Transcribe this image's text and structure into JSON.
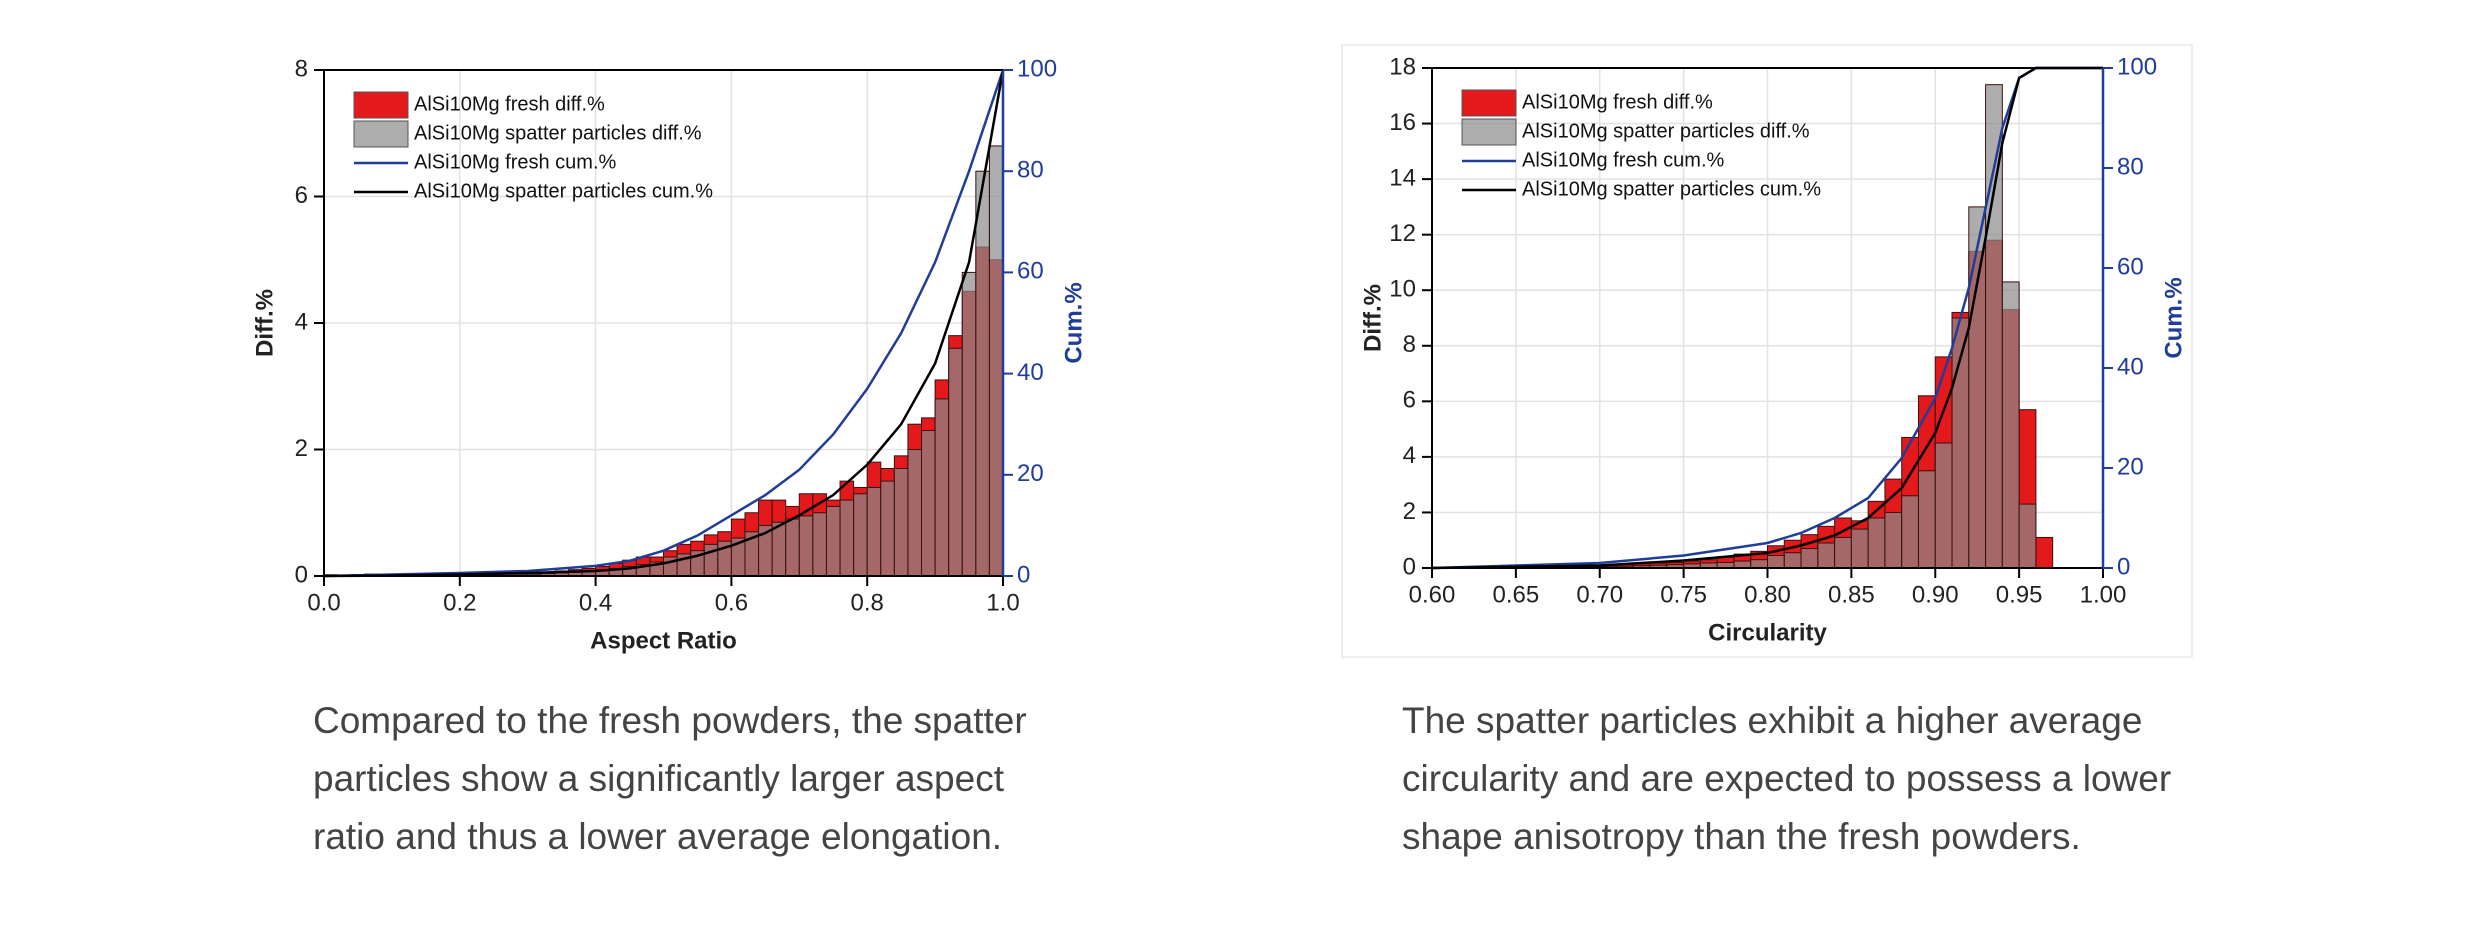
{
  "chart_data": [
    {
      "type": "histogram",
      "xlabel": "Aspect Ratio",
      "ylabel": "Diff.%",
      "y2label": "Cum.%",
      "xlim": [
        0,
        1
      ],
      "ylim": [
        0,
        8
      ],
      "y2lim": [
        0,
        100
      ],
      "grid": true,
      "legend": "upper left",
      "xticks": [
        {
          "value": 0,
          "label": "0.0"
        },
        0.2,
        0.4,
        0.6,
        0.8,
        {
          "value": 1,
          "label": "1.0"
        }
      ],
      "yticks": [
        0,
        2,
        4,
        6,
        8
      ],
      "y2ticks": [
        0,
        20,
        40,
        60,
        80,
        100
      ],
      "bins": [
        0,
        0.02,
        0.04,
        0.06,
        0.08,
        0.1,
        0.12,
        0.14,
        0.16,
        0.18,
        0.2,
        0.22,
        0.24,
        0.26,
        0.28,
        0.3,
        0.32,
        0.34,
        0.36,
        0.38,
        0.4,
        0.42,
        0.44,
        0.46,
        0.48,
        0.5,
        0.52,
        0.54,
        0.56,
        0.58,
        0.6,
        0.62,
        0.64,
        0.66,
        0.68,
        0.7,
        0.72,
        0.74,
        0.76,
        0.78,
        0.8,
        0.82,
        0.84,
        0.86,
        0.88,
        0.9,
        0.92,
        0.94,
        0.96,
        0.98,
        1
      ],
      "series": [
        {
          "name": "AlSi10Mg fresh diff.%",
          "color": "#e3191c",
          "values": [
            0.02,
            0,
            0.02,
            0.03,
            0,
            0.02,
            0.02,
            0,
            0.02,
            0.02,
            0.03,
            0.02,
            0.03,
            0.04,
            0.04,
            0.05,
            0.06,
            0.08,
            0.1,
            0.12,
            0.15,
            0.2,
            0.25,
            0.3,
            0.3,
            0.4,
            0.5,
            0.55,
            0.65,
            0.7,
            0.9,
            1.0,
            1.2,
            1.2,
            1.1,
            1.3,
            1.3,
            1.2,
            1.5,
            1.4,
            1.8,
            1.7,
            1.9,
            2.4,
            2.5,
            3.1,
            3.8,
            4.5,
            5.2,
            5.0
          ]
        },
        {
          "name": "AlSi10Mg spatter particles diff.%",
          "color": "#8a8a8a",
          "values": [
            0,
            0,
            0,
            0.01,
            0,
            0,
            0.01,
            0,
            0.01,
            0.02,
            0.02,
            0.02,
            0.02,
            0.03,
            0.03,
            0.03,
            0.04,
            0.05,
            0.06,
            0.08,
            0.1,
            0.12,
            0.15,
            0.18,
            0.22,
            0.3,
            0.35,
            0.4,
            0.5,
            0.55,
            0.6,
            0.7,
            0.8,
            0.85,
            0.9,
            0.95,
            1.0,
            1.1,
            1.2,
            1.3,
            1.4,
            1.5,
            1.7,
            2.0,
            2.3,
            2.8,
            3.6,
            4.8,
            6.4,
            6.8
          ]
        },
        {
          "name": "AlSi10Mg fresh cum.%",
          "color": "#1f3d99",
          "axis": "y2",
          "x": [
            0,
            0.1,
            0.2,
            0.3,
            0.4,
            0.45,
            0.5,
            0.55,
            0.6,
            0.65,
            0.7,
            0.75,
            0.8,
            0.85,
            0.9,
            0.95,
            1
          ],
          "values": [
            0,
            0.3,
            0.6,
            1,
            2,
            3,
            5,
            8,
            12,
            16,
            21,
            28,
            37,
            48,
            62,
            80,
            100
          ]
        },
        {
          "name": "AlSi10Mg spatter particles cum.%",
          "color": "#000000",
          "axis": "y2",
          "x": [
            0,
            0.1,
            0.2,
            0.3,
            0.4,
            0.45,
            0.5,
            0.55,
            0.6,
            0.65,
            0.7,
            0.75,
            0.8,
            0.85,
            0.9,
            0.95,
            1
          ],
          "values": [
            0,
            0.1,
            0.3,
            0.6,
            1,
            1.5,
            2.5,
            4,
            6,
            8.5,
            12,
            16,
            22,
            30,
            42,
            62,
            100
          ]
        }
      ]
    },
    {
      "type": "histogram",
      "xlabel": "Circularity",
      "ylabel": "Diff.%",
      "y2label": "Cum.%",
      "xlim": [
        0.6,
        1
      ],
      "ylim": [
        0,
        18
      ],
      "y2lim": [
        0,
        100
      ],
      "grid": true,
      "legend": "upper left",
      "xticks": [
        {
          "value": 0.6,
          "label": "0.60"
        },
        {
          "value": 0.65,
          "label": "0.65"
        },
        {
          "value": 0.7,
          "label": "0.70"
        },
        {
          "value": 0.75,
          "label": "0.75"
        },
        {
          "value": 0.8,
          "label": "0.80"
        },
        {
          "value": 0.85,
          "label": "0.85"
        },
        {
          "value": 0.9,
          "label": "0.90"
        },
        {
          "value": 0.95,
          "label": "0.95"
        },
        {
          "value": 1,
          "label": "1.00"
        }
      ],
      "yticks": [
        0,
        2,
        4,
        6,
        8,
        10,
        12,
        14,
        16,
        18
      ],
      "y2ticks": [
        0,
        20,
        40,
        60,
        80,
        100
      ],
      "bins": [
        0.6,
        0.61,
        0.62,
        0.63,
        0.64,
        0.65,
        0.66,
        0.67,
        0.68,
        0.69,
        0.7,
        0.71,
        0.72,
        0.73,
        0.74,
        0.75,
        0.76,
        0.77,
        0.78,
        0.79,
        0.8,
        0.81,
        0.82,
        0.83,
        0.84,
        0.85,
        0.86,
        0.87,
        0.88,
        0.89,
        0.9,
        0.91,
        0.92,
        0.93,
        0.94,
        0.95,
        0.96,
        0.97
      ],
      "series": [
        {
          "name": "AlSi10Mg fresh diff.%",
          "color": "#e3191c",
          "values": [
            0,
            0,
            0,
            0,
            0,
            0,
            0,
            0.02,
            0.05,
            0.08,
            0.1,
            0.12,
            0.15,
            0.18,
            0.2,
            0.25,
            0.3,
            0.4,
            0.5,
            0.6,
            0.8,
            1.0,
            1.2,
            1.5,
            1.8,
            1.7,
            2.4,
            3.2,
            4.7,
            6.2,
            7.6,
            9.2,
            11.4,
            11.8,
            9.3,
            5.7,
            1.1
          ]
        },
        {
          "name": "AlSi10Mg spatter particles diff.%",
          "color": "#8a8a8a",
          "values": [
            0,
            0,
            0,
            0,
            0,
            0,
            0,
            0.01,
            0.02,
            0.03,
            0.05,
            0.06,
            0.08,
            0.1,
            0.12,
            0.15,
            0.18,
            0.2,
            0.25,
            0.3,
            0.45,
            0.55,
            0.7,
            0.9,
            1.1,
            1.4,
            1.8,
            2.0,
            2.6,
            3.5,
            4.5,
            9.0,
            13.0,
            17.4,
            10.3,
            2.3,
            0
          ]
        },
        {
          "name": "AlSi10Mg fresh cum.%",
          "color": "#1f3d99",
          "axis": "y2",
          "x": [
            0.6,
            0.7,
            0.75,
            0.8,
            0.82,
            0.84,
            0.86,
            0.88,
            0.9,
            0.91,
            0.92,
            0.93,
            0.94,
            0.95,
            0.96,
            1
          ],
          "values": [
            0,
            1,
            2.5,
            5,
            7,
            10,
            14,
            22,
            34,
            44,
            56,
            72,
            88,
            98,
            100,
            100
          ]
        },
        {
          "name": "AlSi10Mg spatter particles cum.%",
          "color": "#000000",
          "axis": "y2",
          "x": [
            0.6,
            0.7,
            0.75,
            0.8,
            0.82,
            0.84,
            0.86,
            0.88,
            0.9,
            0.91,
            0.92,
            0.93,
            0.94,
            0.95,
            0.96,
            1
          ],
          "values": [
            0,
            0.5,
            1.5,
            3,
            4.5,
            6.5,
            10,
            16,
            27,
            36,
            48,
            66,
            85,
            98,
            100,
            100
          ]
        }
      ]
    }
  ],
  "captions": [
    [
      "Compared to the fresh powders, the spatter",
      "particles show a significantly larger aspect",
      "ratio and thus a lower average elongation."
    ],
    [
      "The spatter particles exhibit a higher average",
      "circularity and are expected to possess a lower",
      "shape anisotropy than the fresh powders."
    ]
  ]
}
